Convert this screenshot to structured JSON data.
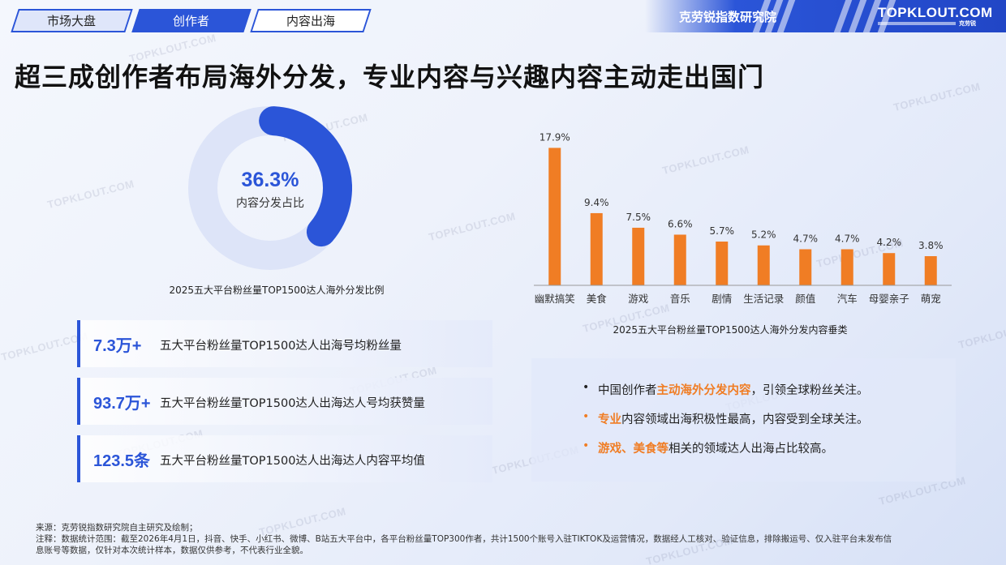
{
  "nav": {
    "tabs": [
      "市场大盘",
      "创作者",
      "内容出海"
    ]
  },
  "brand": {
    "institute": "克劳锐指数研究院",
    "logo": "TOPKLOUT.COM",
    "logo_cn": "克劳锐"
  },
  "watermark": "TOPKLOUT.COM",
  "headline": "超三成创作者布局海外分发，专业内容与兴趣内容主动走出国门",
  "donut": {
    "value": 36.3,
    "value_label": "36.3%",
    "label": "内容分发占比",
    "caption": "2025五大平台粉丝量TOP1500达人海外分发比例"
  },
  "stats": [
    {
      "value": "7.3万+",
      "desc": "五大平台粉丝量TOP1500达人出海号均粉丝量"
    },
    {
      "value": "93.7万+",
      "desc": "五大平台粉丝量TOP1500达人出海达人号均获赞量"
    },
    {
      "value": "123.5条",
      "desc": "五大平台粉丝量TOP1500达人出海达人内容平均值"
    }
  ],
  "chart_data": {
    "type": "bar",
    "title": "2025五大平台粉丝量TOP1500达人海外分发内容垂类",
    "categories": [
      "幽默搞笑",
      "美食",
      "游戏",
      "音乐",
      "剧情",
      "生活记录",
      "颜值",
      "汽车",
      "母婴亲子",
      "萌宠"
    ],
    "values": [
      17.9,
      9.4,
      7.5,
      6.6,
      5.7,
      5.2,
      4.7,
      4.7,
      4.2,
      3.8
    ],
    "value_labels": [
      "17.9%",
      "9.4%",
      "7.5%",
      "6.6%",
      "5.7%",
      "5.2%",
      "4.7%",
      "4.7%",
      "4.2%",
      "3.8%"
    ],
    "color": "#f07d24",
    "ylim": [
      0,
      19
    ],
    "grid": false,
    "legend": "none"
  },
  "insights": [
    {
      "parts": [
        {
          "t": "中国创作者",
          "hl": false
        },
        {
          "t": "主动海外分发内容",
          "hl": true
        },
        {
          "t": "，引领全球粉丝关注。",
          "hl": false
        }
      ]
    },
    {
      "parts": [
        {
          "t": "专业",
          "hl": true
        },
        {
          "t": "内容领域出海积极性最高，内容受到全球关注。",
          "hl": false
        }
      ]
    },
    {
      "parts": [
        {
          "t": "游戏、美食等",
          "hl": true
        },
        {
          "t": "相关的领域达人出海占比较高。",
          "hl": false
        }
      ]
    }
  ],
  "footer": {
    "source": "来源：克劳锐指数研究院自主研究及绘制；",
    "note_line1": "注释：数据统计范围：截至2026年4月1日，抖音、快手、小红书、微博、B站五大平台中，各平台粉丝量TOP300作者，共计1500个账号入驻TIKTOK及运营情况，数据经人工核对、验证信息，排除搬运号、仅入驻平台未发布信",
    "note_line2": "息账号等数据，仅针对本次统计样本，数据仅供参考，不代表行业全貌。"
  },
  "colors": {
    "primary": "#2b55d8",
    "accent": "#f07d24",
    "donut_track": "#dde4f8"
  }
}
